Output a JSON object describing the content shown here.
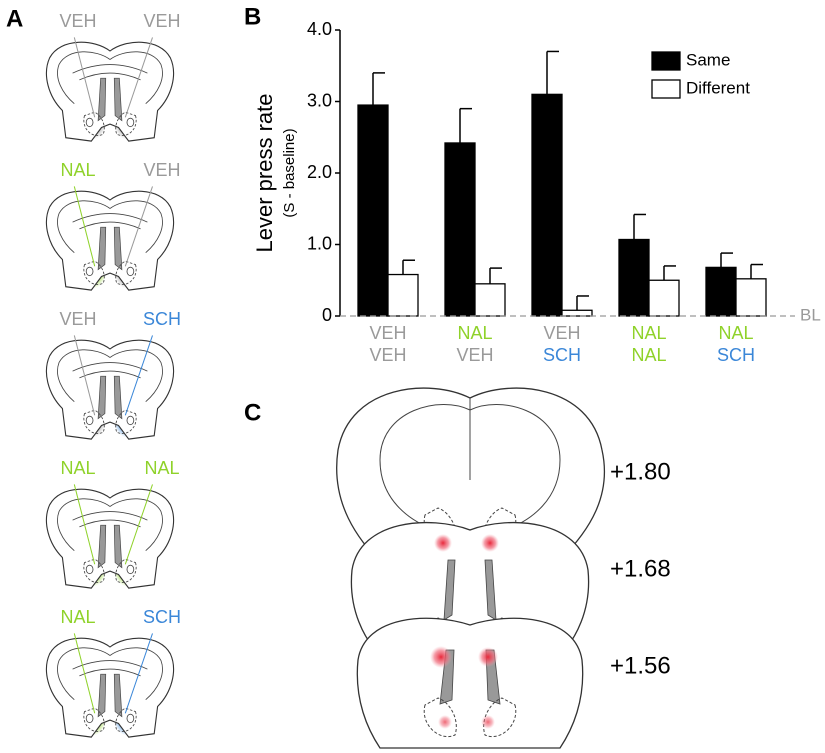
{
  "panel_labels": [
    "A",
    "B",
    "C"
  ],
  "drug_colors": {
    "VEH": "#9a9a9a",
    "NAL": "#8fd22a",
    "SCH": "#3b87d8"
  },
  "panel_a": {
    "diagrams": [
      {
        "left": "VEH",
        "right": "VEH"
      },
      {
        "left": "NAL",
        "right": "VEH"
      },
      {
        "left": "VEH",
        "right": "SCH"
      },
      {
        "left": "NAL",
        "right": "NAL"
      },
      {
        "left": "NAL",
        "right": "SCH"
      }
    ]
  },
  "chart_data": {
    "type": "bar",
    "y_label": "Lever press rate",
    "y_sublabel": "(S - baseline)",
    "categories": [
      [
        "VEH",
        "VEH"
      ],
      [
        "NAL",
        "VEH"
      ],
      [
        "VEH",
        "SCH"
      ],
      [
        "NAL",
        "NAL"
      ],
      [
        "NAL",
        "SCH"
      ]
    ],
    "series": [
      {
        "name": "Same",
        "color": "#000000",
        "values": [
          2.95,
          2.42,
          3.1,
          1.07,
          0.68
        ],
        "errors": [
          0.45,
          0.48,
          0.6,
          0.35,
          0.2
        ]
      },
      {
        "name": "Different",
        "color": "#ffffff",
        "values": [
          0.58,
          0.45,
          0.08,
          0.5,
          0.52
        ],
        "errors": [
          0.2,
          0.22,
          0.2,
          0.2,
          0.2
        ]
      }
    ],
    "ylim": [
      0,
      4
    ],
    "yticks": [
      0,
      {
        "value": 1,
        "label": "1.0"
      },
      {
        "value": 2,
        "label": "2.0"
      },
      {
        "value": 3,
        "label": "3.0"
      },
      {
        "value": 4,
        "label": "4.0"
      }
    ],
    "baseline_label": "BL",
    "legend": "upper right"
  },
  "panel_c": {
    "levels": [
      "+1.80",
      "+1.68",
      "+1.56"
    ]
  }
}
